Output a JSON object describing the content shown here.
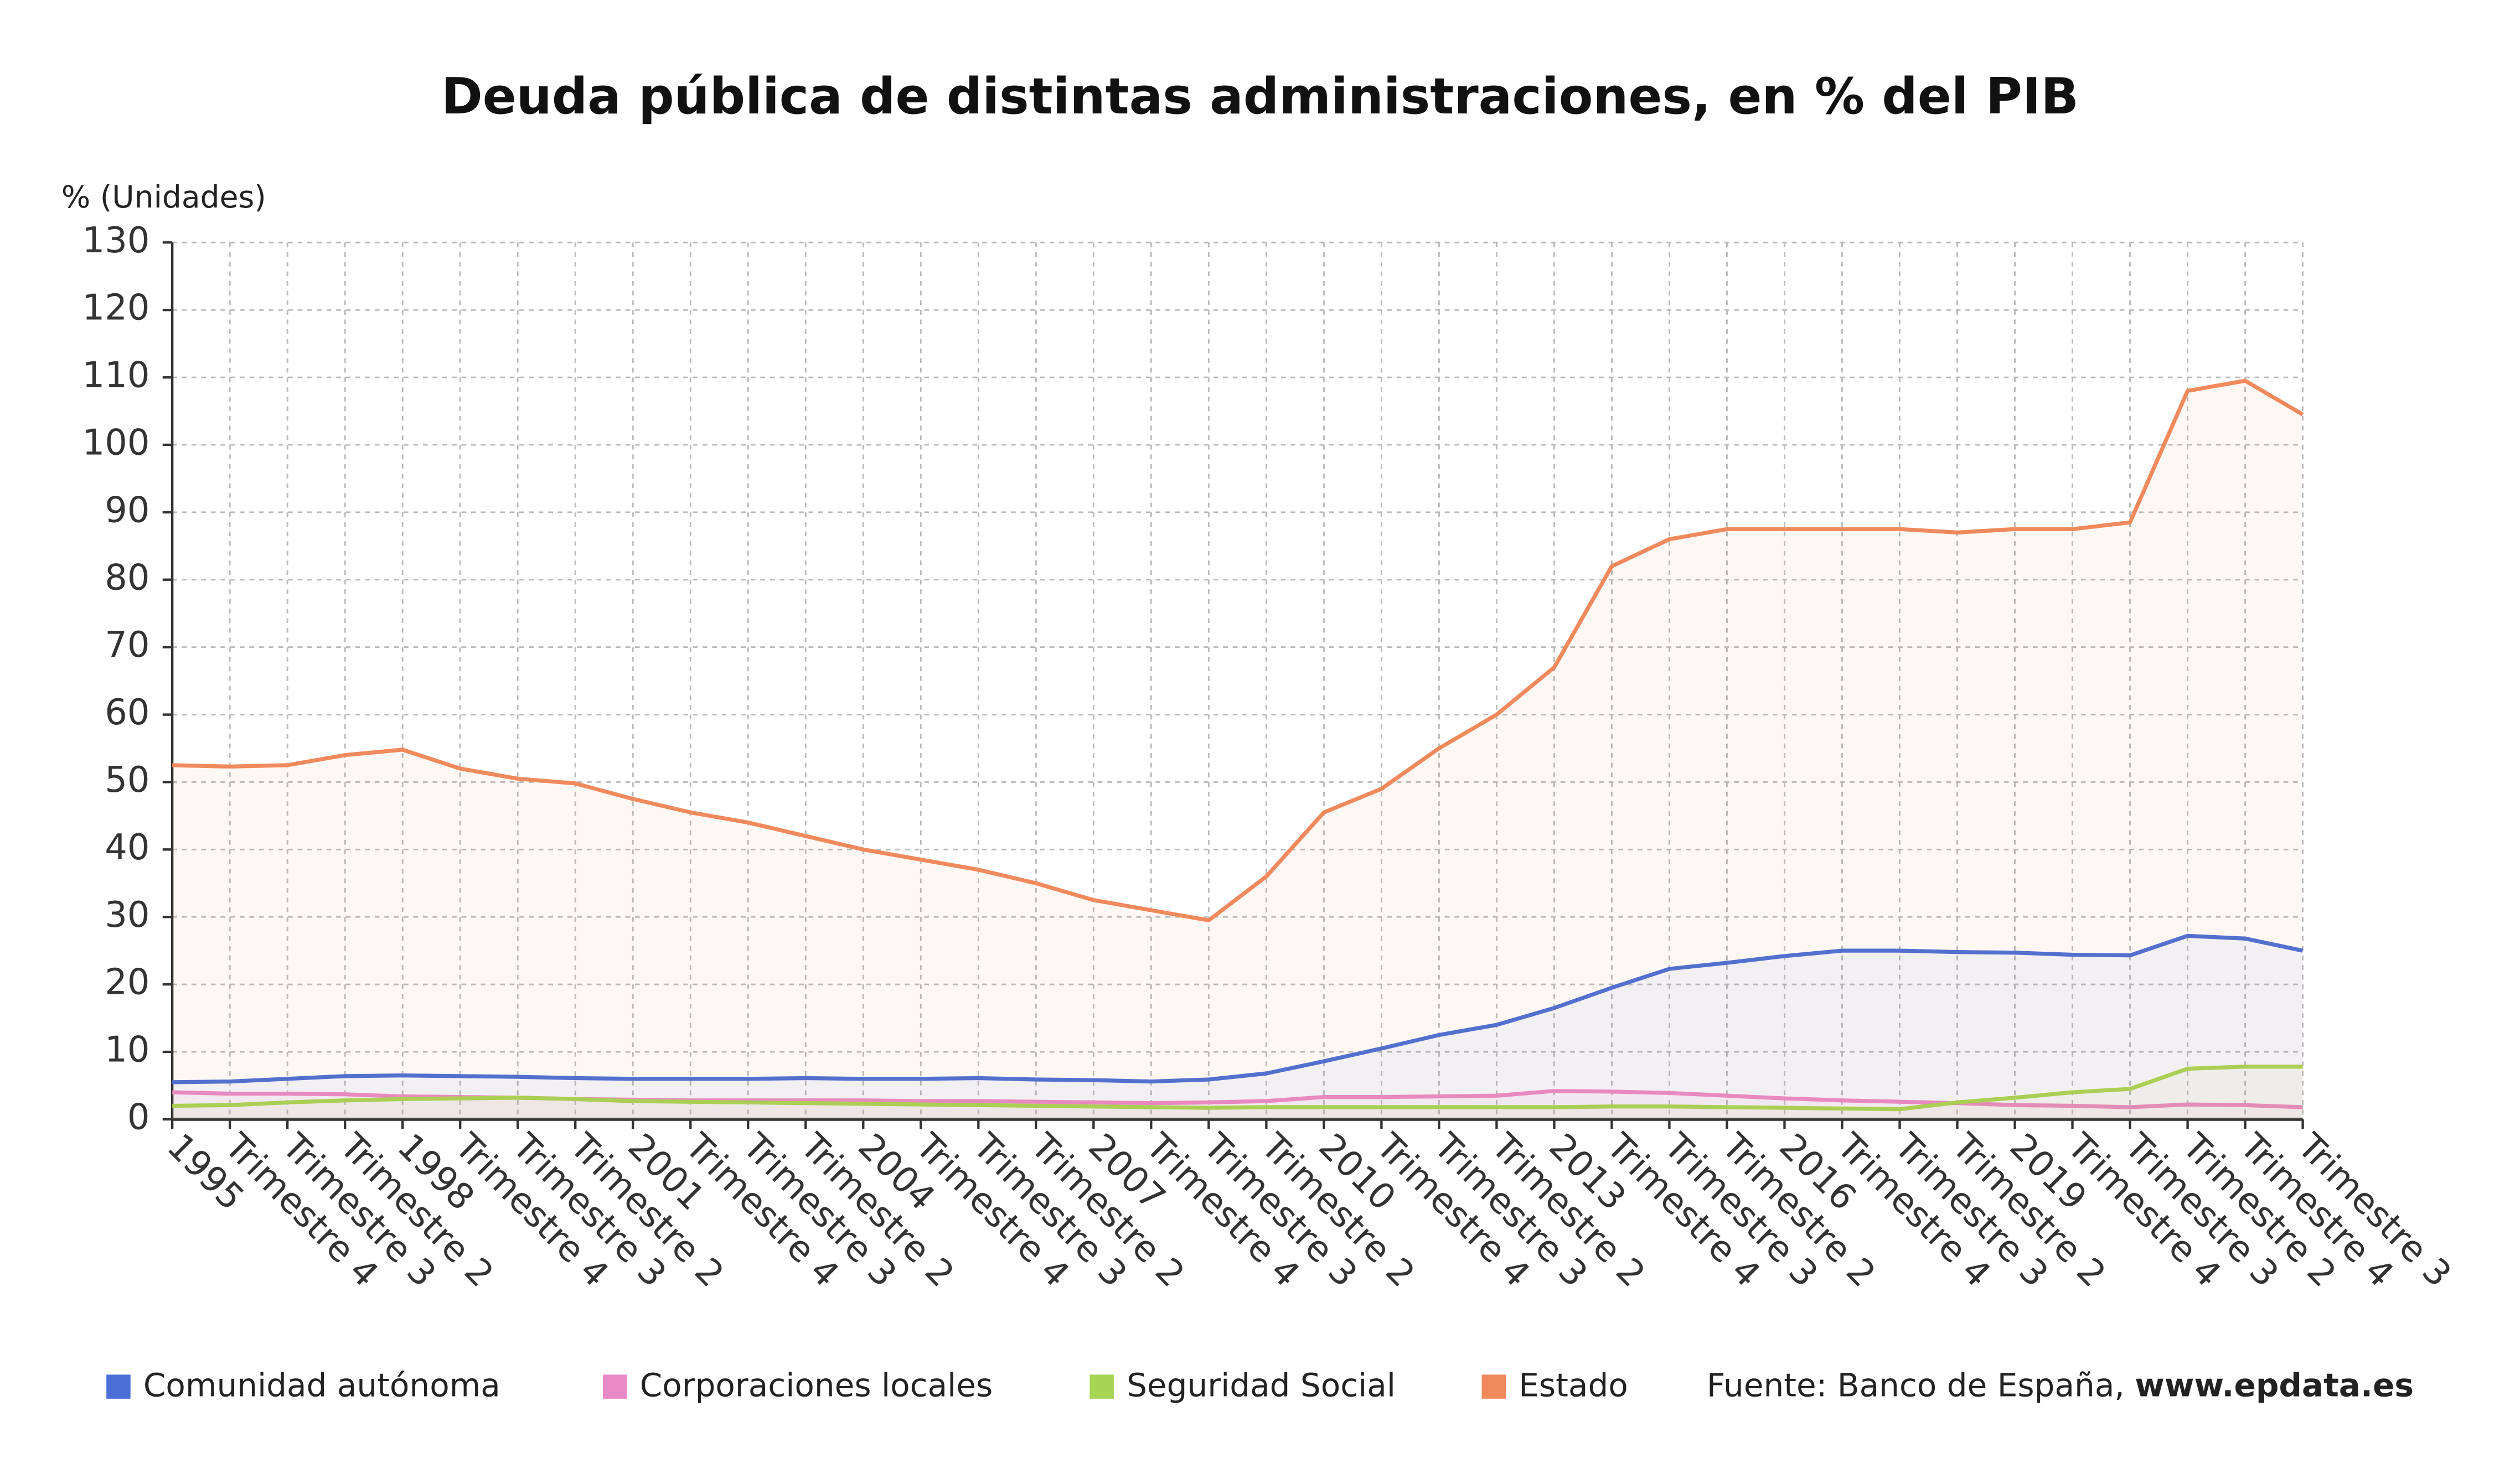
{
  "chart_data": {
    "type": "line",
    "title": "Deuda pública de distintas administraciones, en % del PIB",
    "y_label": "% (Unidades)",
    "source": "Fuente: Banco de España,",
    "source_url": "www.epdata.es",
    "categories": [
      "1995",
      "Trimestre 4",
      "Trimestre 3",
      "Trimestre 2",
      "1998",
      "Trimestre 4",
      "Trimestre 3",
      "Trimestre 2",
      "2001",
      "Trimestre 4",
      "Trimestre 3",
      "Trimestre 2",
      "2004",
      "Trimestre 4",
      "Trimestre 3",
      "Trimestre 2",
      "2007",
      "Trimestre 4",
      "Trimestre 3",
      "Trimestre 2",
      "2010",
      "Trimestre 4",
      "Trimestre 3",
      "Trimestre 2",
      "2013",
      "Trimestre 4",
      "Trimestre 3",
      "Trimestre 2",
      "2016",
      "Trimestre 4",
      "Trimestre 3",
      "Trimestre 2",
      "2019",
      "Trimestre 4",
      "Trimestre 3",
      "Trimestre 2",
      "Trimestre 4",
      "Trimestre 3"
    ],
    "series": [
      {
        "name": "Comunidad autónoma",
        "color": "#4a6fd6",
        "values": [
          5.5,
          5.6,
          6,
          6.4,
          6.5,
          6.4,
          6.3,
          6.1,
          6,
          6,
          6,
          6.1,
          6,
          6,
          6.1,
          5.9,
          5.8,
          5.6,
          5.9,
          6.8,
          8.6,
          10.5,
          12.5,
          14,
          16.5,
          19.5,
          22.3,
          23.2,
          24.2,
          25,
          25,
          24.8,
          24.7,
          24.4,
          24.3,
          27.2,
          26.8,
          25
        ]
      },
      {
        "name": "Corporaciones locales",
        "color": "#e88ac6",
        "values": [
          4,
          3.8,
          3.8,
          3.7,
          3.4,
          3.3,
          3.2,
          3,
          2.9,
          2.8,
          2.8,
          2.8,
          2.8,
          2.7,
          2.7,
          2.6,
          2.5,
          2.4,
          2.5,
          2.7,
          3.3,
          3.3,
          3.4,
          3.5,
          4.2,
          4.1,
          3.9,
          3.5,
          3.1,
          2.8,
          2.6,
          2.4,
          2.1,
          2,
          1.8,
          2.2,
          2.1,
          1.8
        ]
      },
      {
        "name": "Seguridad Social",
        "color": "#a6d454",
        "values": [
          2,
          2.1,
          2.5,
          2.8,
          3,
          3.1,
          3.2,
          3,
          2.7,
          2.6,
          2.5,
          2.4,
          2.3,
          2.2,
          2.1,
          2,
          1.9,
          1.8,
          1.7,
          1.8,
          1.8,
          1.8,
          1.8,
          1.8,
          1.8,
          1.9,
          1.9,
          1.8,
          1.7,
          1.6,
          1.5,
          2.5,
          3.2,
          4,
          4.5,
          7.5,
          7.8,
          7.8
        ]
      },
      {
        "name": "Estado",
        "color": "#f08a5d",
        "values": [
          52.5,
          52.3,
          52.5,
          54,
          54.8,
          52,
          50.5,
          49.8,
          47.5,
          45.5,
          44,
          42,
          40,
          38.5,
          37,
          35,
          32.5,
          31,
          29.5,
          36,
          45.5,
          49,
          55,
          60,
          67,
          82,
          86,
          87.5,
          87.5,
          87.5,
          87.5,
          87,
          87.5,
          87.5,
          88.5,
          108,
          109.5,
          104.5
        ]
      }
    ],
    "ylim": [
      0,
      130
    ],
    "yticks": [
      0,
      10,
      20,
      30,
      40,
      50,
      60,
      70,
      80,
      90,
      100,
      110,
      120,
      130
    ],
    "grid": true
  }
}
